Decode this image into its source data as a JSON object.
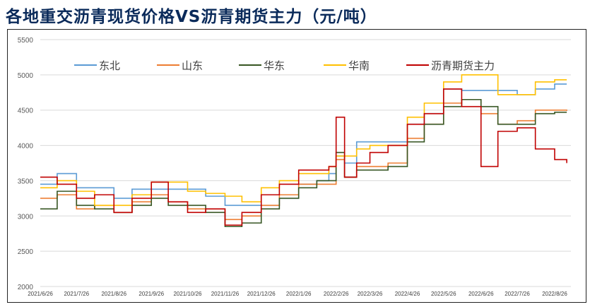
{
  "chart_data": {
    "type": "line",
    "title": "各地重交沥青现货价格VS沥青期货主力（元/吨）",
    "ylim": [
      2000,
      5500
    ],
    "yticks": [
      2000,
      2500,
      3000,
      3500,
      4000,
      4500,
      5000,
      5500
    ],
    "xticks": [
      "2021/6/26",
      "2021/7/26",
      "2021/8/26",
      "2021/9/26",
      "2021/10/26",
      "2021/11/26",
      "2021/12/26",
      "2022/1/26",
      "2022/2/26",
      "2022/3/26",
      "2022/4/26",
      "2022/5/26",
      "2022/6/26",
      "2022/7/26",
      "2022/8/26"
    ],
    "grid": "horizontal",
    "legend": "top",
    "x": [
      "2021-06-26",
      "2021-07-10",
      "2021-07-26",
      "2021-08-10",
      "2021-08-26",
      "2021-09-10",
      "2021-09-26",
      "2021-10-10",
      "2021-10-26",
      "2021-11-10",
      "2021-11-26",
      "2021-12-10",
      "2021-12-26",
      "2022-01-10",
      "2022-01-26",
      "2022-02-10",
      "2022-02-20",
      "2022-02-26",
      "2022-03-05",
      "2022-03-15",
      "2022-03-26",
      "2022-04-10",
      "2022-04-26",
      "2022-05-10",
      "2022-05-26",
      "2022-06-10",
      "2022-06-26",
      "2022-07-10",
      "2022-07-26",
      "2022-08-10",
      "2022-08-26",
      "2022-09-05"
    ],
    "series": [
      {
        "name": "东北",
        "color": "#5b9bd5",
        "values": [
          3450,
          3600,
          3400,
          3400,
          3250,
          3380,
          3380,
          3380,
          3380,
          3280,
          3150,
          3150,
          3150,
          3250,
          3450,
          3500,
          3600,
          3850,
          3750,
          4050,
          4050,
          4050,
          4300,
          4450,
          4800,
          4780,
          4780,
          4780,
          4720,
          4800,
          4870,
          4870
        ]
      },
      {
        "name": "山东",
        "color": "#ed7d31",
        "values": [
          3250,
          3300,
          3100,
          3150,
          3050,
          3200,
          3300,
          3200,
          3100,
          3100,
          2950,
          3000,
          3150,
          3300,
          3450,
          3450,
          3450,
          3800,
          3550,
          3700,
          3700,
          3750,
          4100,
          4300,
          4600,
          4650,
          4450,
          4300,
          4350,
          4500,
          4500,
          4490
        ]
      },
      {
        "name": "华东",
        "color": "#375623",
        "values": [
          3100,
          3350,
          3150,
          3100,
          3050,
          3150,
          3250,
          3150,
          3150,
          3050,
          2850,
          2900,
          3100,
          3250,
          3400,
          3500,
          3500,
          3900,
          3550,
          3650,
          3650,
          3700,
          4050,
          4300,
          4550,
          4650,
          4550,
          4300,
          4300,
          4450,
          4470,
          4470
        ]
      },
      {
        "name": "华南",
        "color": "#ffc000",
        "values": [
          3400,
          3500,
          3350,
          3150,
          3150,
          3300,
          3480,
          3480,
          3350,
          3320,
          3280,
          3200,
          3400,
          3500,
          3600,
          3600,
          3700,
          3850,
          3850,
          3950,
          4000,
          4000,
          4400,
          4600,
          4900,
          5000,
          5000,
          4720,
          4720,
          4900,
          4930,
          4930
        ]
      },
      {
        "name": "沥青期货主力",
        "color": "#c00000",
        "values": [
          3550,
          3450,
          3250,
          3300,
          3050,
          3250,
          3480,
          3200,
          3050,
          3100,
          2870,
          3050,
          3300,
          3450,
          3650,
          3650,
          3700,
          4400,
          3550,
          3750,
          3900,
          4000,
          4300,
          4450,
          4800,
          4550,
          3700,
          4200,
          4250,
          3950,
          3800,
          3750
        ]
      }
    ]
  }
}
